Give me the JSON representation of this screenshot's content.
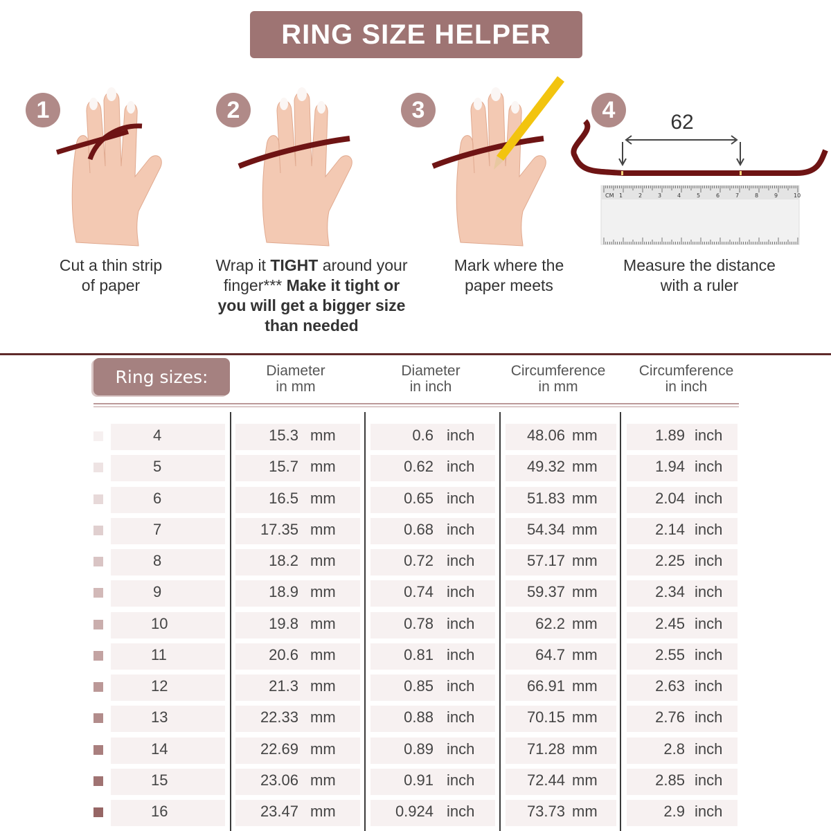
{
  "title": "RING SIZE HELPER",
  "steps": [
    {
      "number": "1",
      "caption_html": "Cut a thin strip<br>of paper",
      "caption_parts": [
        "Cut a thin strip",
        "of paper"
      ]
    },
    {
      "number": "2",
      "caption_parts": [
        "Wrap it ",
        "TIGHT",
        " around your",
        "finger***",
        " Make it tight or",
        "you will get a bigger size",
        "than needed"
      ]
    },
    {
      "number": "3",
      "caption_parts": [
        "Mark where the",
        "paper meets"
      ]
    },
    {
      "number": "4",
      "caption_parts": [
        "Measure the distance",
        "with a ruler"
      ],
      "measurement": "62",
      "ruler_labels": [
        "CM",
        "1",
        "2",
        "3",
        "4",
        "5",
        "6",
        "7",
        "8",
        "9",
        "10"
      ]
    }
  ],
  "table": {
    "ring_sizes_label": "Ring sizes:",
    "headers": [
      [
        "Diameter",
        "in mm"
      ],
      [
        "Diameter",
        "in inch"
      ],
      [
        "Circumference",
        "in mm"
      ],
      [
        "Circumference",
        "in inch"
      ]
    ],
    "unit_mm": "mm",
    "unit_inch": "inch",
    "rows": [
      {
        "size": "4",
        "dia_mm": "15.3",
        "dia_in": "0.6",
        "circ_mm": "48.06",
        "circ_in": "1.89",
        "swatch": "#f6f0f0"
      },
      {
        "size": "5",
        "dia_mm": "15.7",
        "dia_in": "0.62",
        "circ_mm": "49.32",
        "circ_in": "1.94",
        "swatch": "#eee3e3"
      },
      {
        "size": "6",
        "dia_mm": "16.5",
        "dia_in": "0.65",
        "circ_mm": "51.83",
        "circ_in": "2.04",
        "swatch": "#e7d9d9"
      },
      {
        "size": "7",
        "dia_mm": "17.35",
        "dia_in": "0.68",
        "circ_mm": "54.34",
        "circ_in": "2.14",
        "swatch": "#e0cfcf"
      },
      {
        "size": "8",
        "dia_mm": "18.2",
        "dia_in": "0.72",
        "circ_mm": "57.17",
        "circ_in": "2.25",
        "swatch": "#d9c4c4"
      },
      {
        "size": "9",
        "dia_mm": "18.9",
        "dia_in": "0.74",
        "circ_mm": "59.37",
        "circ_in": "2.34",
        "swatch": "#d2b9b8"
      },
      {
        "size": "10",
        "dia_mm": "19.8",
        "dia_in": "0.78",
        "circ_mm": "62.2",
        "circ_in": "2.45",
        "swatch": "#caaead"
      },
      {
        "size": "11",
        "dia_mm": "20.6",
        "dia_in": "0.81",
        "circ_mm": "64.7",
        "circ_in": "2.55",
        "swatch": "#c3a3a2"
      },
      {
        "size": "12",
        "dia_mm": "21.3",
        "dia_in": "0.85",
        "circ_mm": "66.91",
        "circ_in": "2.63",
        "swatch": "#bb9897"
      },
      {
        "size": "13",
        "dia_mm": "22.33",
        "dia_in": "0.88",
        "circ_mm": "70.15",
        "circ_in": "2.76",
        "swatch": "#b28c8b"
      },
      {
        "size": "14",
        "dia_mm": "22.69",
        "dia_in": "0.89",
        "circ_mm": "71.28",
        "circ_in": "2.8",
        "swatch": "#a97f7e"
      },
      {
        "size": "15",
        "dia_mm": "23.06",
        "dia_in": "0.91",
        "circ_mm": "72.44",
        "circ_in": "2.85",
        "swatch": "#a07372"
      },
      {
        "size": "16",
        "dia_mm": "23.47",
        "dia_in": "0.924",
        "circ_mm": "73.73",
        "circ_in": "2.9",
        "swatch": "#966665"
      }
    ]
  },
  "colors": {
    "accent": "#9e7473",
    "badge": "#b08a88",
    "paper_strip": "#6e1414",
    "divider": "#5e2a2a"
  }
}
